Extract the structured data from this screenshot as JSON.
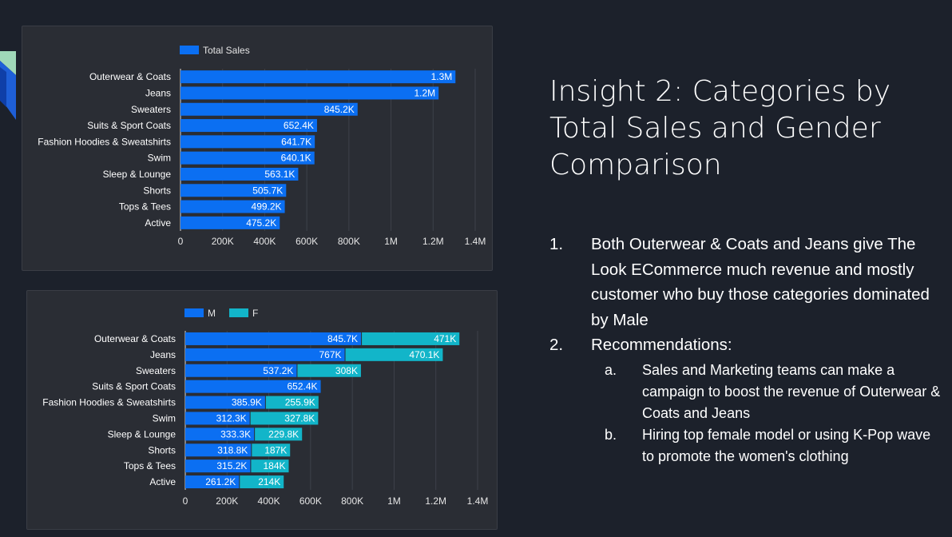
{
  "colors": {
    "background": "#1c212b",
    "panel": "#2a2d34",
    "male": "#0b6ff2",
    "female": "#12b5c9",
    "total": "#0b6ff2",
    "corner_green": "#9fd8b8",
    "corner_blue": "#1e5fd8"
  },
  "slide": {
    "title": "Insight 2: Categories by Total Sales and Gender Comparison",
    "points": [
      {
        "number": "1.",
        "text": "Both Outerwear & Coats and Jeans give The Look ECommerce much revenue and mostly customer who buy those categories dominated by Male"
      },
      {
        "number": "2.",
        "text": "Recommendations:",
        "subpoints": [
          {
            "letter": "a.",
            "text": "Sales and Marketing teams can make a campaign to boost the revenue of Outerwear & Coats and Jeans"
          },
          {
            "letter": "b.",
            "text": "Hiring top female model or using K-Pop wave to promote the women's clothing"
          }
        ]
      }
    ]
  },
  "chart_data": [
    {
      "type": "bar",
      "orientation": "horizontal",
      "categories": [
        "Outerwear & Coats",
        "Jeans",
        "Sweaters",
        "Suits & Sport Coats",
        "Fashion Hoodies & Sweatshirts",
        "Swim",
        "Sleep & Lounge",
        "Shorts",
        "Tops & Tees",
        "Active"
      ],
      "series": [
        {
          "name": "Total Sales",
          "color": "#0b6ff2",
          "values": [
            1310000,
            1230000,
            845200,
            652400,
            641700,
            640100,
            563100,
            505700,
            499200,
            475200
          ],
          "labels": [
            "1.3M",
            "1.2M",
            "845.2K",
            "652.4K",
            "641.7K",
            "640.1K",
            "563.1K",
            "505.7K",
            "499.2K",
            "475.2K"
          ]
        }
      ],
      "xlim": [
        0,
        1400000
      ],
      "xticks": [
        0,
        200000,
        400000,
        600000,
        800000,
        1000000,
        1200000,
        1400000
      ],
      "xtick_labels": [
        "0",
        "200K",
        "400K",
        "600K",
        "800K",
        "1M",
        "1.2M",
        "1.4M"
      ],
      "legend": "top-left",
      "grid": true
    },
    {
      "type": "bar",
      "orientation": "horizontal",
      "stacked": true,
      "categories": [
        "Outerwear & Coats",
        "Jeans",
        "Sweaters",
        "Suits & Sport Coats",
        "Fashion Hoodies & Sweatshirts",
        "Swim",
        "Sleep & Lounge",
        "Shorts",
        "Tops & Tees",
        "Active"
      ],
      "series": [
        {
          "name": "M",
          "color": "#0b6ff2",
          "values": [
            845700,
            767000,
            537200,
            652400,
            385900,
            312300,
            333300,
            318800,
            315200,
            261200
          ],
          "labels": [
            "845.7K",
            "767K",
            "537.2K",
            "652.4K",
            "385.9K",
            "312.3K",
            "333.3K",
            "318.8K",
            "315.2K",
            "261.2K"
          ]
        },
        {
          "name": "F",
          "color": "#12b5c9",
          "values": [
            471000,
            470100,
            308000,
            0,
            255900,
            327800,
            229800,
            187000,
            184000,
            214000
          ],
          "labels": [
            "471K",
            "470.1K",
            "308K",
            "",
            "255.9K",
            "327.8K",
            "229.8K",
            "187K",
            "184K",
            "214K"
          ]
        }
      ],
      "xlim": [
        0,
        1400000
      ],
      "xticks": [
        0,
        200000,
        400000,
        600000,
        800000,
        1000000,
        1200000,
        1400000
      ],
      "xtick_labels": [
        "0",
        "200K",
        "400K",
        "600K",
        "800K",
        "1M",
        "1.2M",
        "1.4M"
      ],
      "legend": "top-left",
      "grid": true
    }
  ]
}
